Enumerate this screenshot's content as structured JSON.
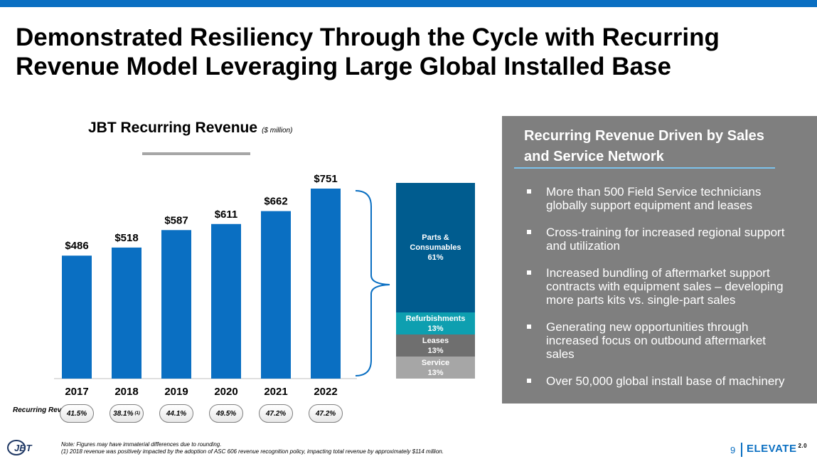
{
  "slide": {
    "title": "Demonstrated Resiliency Through the Cycle with Recurring Revenue Model Leveraging Large Global Installed Base",
    "page_number": "9",
    "brand": "ELEVATE",
    "brand_version": "2.0",
    "logo_text": "JBT"
  },
  "colors": {
    "bar": "#0a6fc2",
    "parts": "#005c8f",
    "refurbishments": "#0e9fb0",
    "leases": "#6f6f6f",
    "service": "#a6a6a6",
    "panel": "#7f7f7f"
  },
  "chart_data": {
    "type": "bar",
    "title": "JBT Recurring Revenue",
    "unit": "($ million)",
    "categories": [
      "2017",
      "2018",
      "2019",
      "2020",
      "2021",
      "2022"
    ],
    "values": [
      486,
      518,
      587,
      611,
      662,
      751
    ],
    "value_labels": [
      "$486",
      "$518",
      "$587",
      "$611",
      "$662",
      "$751"
    ],
    "ylim": [
      0,
      751
    ]
  },
  "recurring_pct": {
    "label": "Recurring Revenue %",
    "values": [
      {
        "text": "41.5%",
        "sup": ""
      },
      {
        "text": "38.1%",
        "sup": "(1)"
      },
      {
        "text": "44.1%",
        "sup": ""
      },
      {
        "text": "49.5%",
        "sup": ""
      },
      {
        "text": "47.2%",
        "sup": ""
      },
      {
        "text": "47.2%",
        "sup": ""
      }
    ]
  },
  "breakdown": {
    "parts": {
      "label": "Parts & Consumables",
      "pct": "61%",
      "value": 61
    },
    "refurbishments": {
      "label": "Refurbishments",
      "pct": "13%",
      "value": 13
    },
    "leases": {
      "label": "Leases",
      "pct": "13%",
      "value": 13
    },
    "service": {
      "label": "Service",
      "pct": "13%",
      "value": 13
    }
  },
  "panel": {
    "title": "Recurring Revenue Driven by Sales and Service Network",
    "bullets": [
      "More than 500 Field Service technicians globally support equipment and leases",
      "Cross-training for increased regional support and utilization",
      "Increased bundling of aftermarket support contracts with equipment sales – developing more parts kits vs. single-part sales",
      "Generating new opportunities through increased focus on outbound aftermarket sales",
      "Over 50,000 global install base of machinery"
    ]
  },
  "notes": {
    "line1": "Note: Figures may have immaterial differences due to rounding.",
    "line2": "(1) 2018 revenue was positively impacted by the adoption of ASC 606 revenue recognition policy, impacting total revenue by approximately $114 million."
  }
}
